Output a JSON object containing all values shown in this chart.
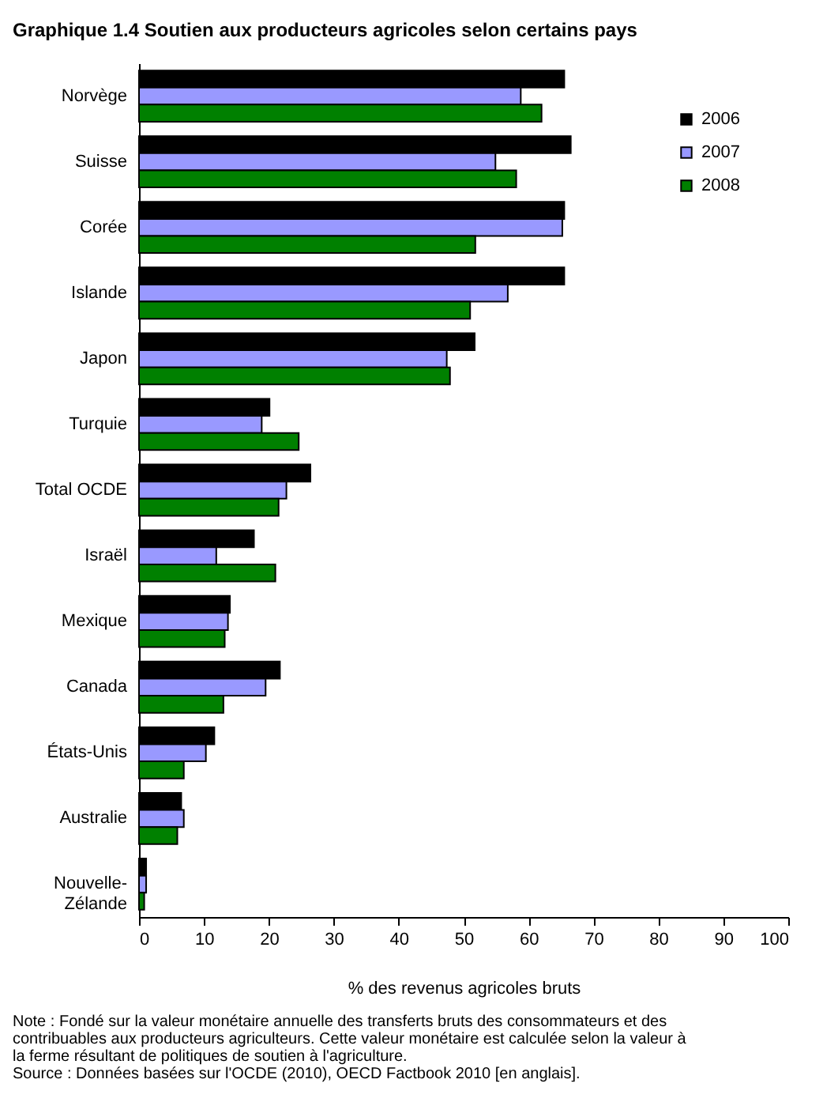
{
  "chart_data": {
    "type": "bar",
    "orientation": "horizontal",
    "title": "Graphique 1.4 Soutien aux producteurs agricoles selon certains pays",
    "xlabel": "% des revenus agricoles bruts",
    "categories": [
      "Norvège",
      "Suisse",
      "Corée",
      "Islande",
      "Japon",
      "Turquie",
      "Total OCDE",
      "Israël",
      "Mexique",
      "Canada",
      "États-Unis",
      "Australie",
      "Nouvelle-Zélande"
    ],
    "series": [
      {
        "name": "2006",
        "color": "#000000",
        "values": [
          65.5,
          66.5,
          65.5,
          65.5,
          51.7,
          20.1,
          26.4,
          17.7,
          14.0,
          21.7,
          11.6,
          6.5,
          1.1
        ]
      },
      {
        "name": "2007",
        "color": "#9999ff",
        "values": [
          58.8,
          54.9,
          65.2,
          56.8,
          47.4,
          18.9,
          22.7,
          11.9,
          13.7,
          19.5,
          10.3,
          6.9,
          1.1
        ]
      },
      {
        "name": "2008",
        "color": "#008000",
        "values": [
          62.0,
          58.1,
          51.8,
          51.0,
          47.9,
          24.6,
          21.5,
          21.0,
          13.2,
          13.0,
          6.9,
          5.9,
          0.8
        ]
      }
    ],
    "xlim": [
      0,
      100
    ],
    "xticks": [
      0,
      10,
      20,
      30,
      40,
      50,
      60,
      70,
      80,
      90,
      100
    ],
    "legend": "top right",
    "annotations": [
      "Note : Fondé sur la valeur monétaire annuelle des transferts bruts des consommateurs et des contribuables aux producteurs agriculteurs. Cette valeur monétaire est calculée selon la valeur à la ferme résultant de politiques de soutien à l'agriculture.",
      "Source : Données basées sur l'OCDE (2010), OECD Factbook 2010 [en anglais]."
    ]
  }
}
